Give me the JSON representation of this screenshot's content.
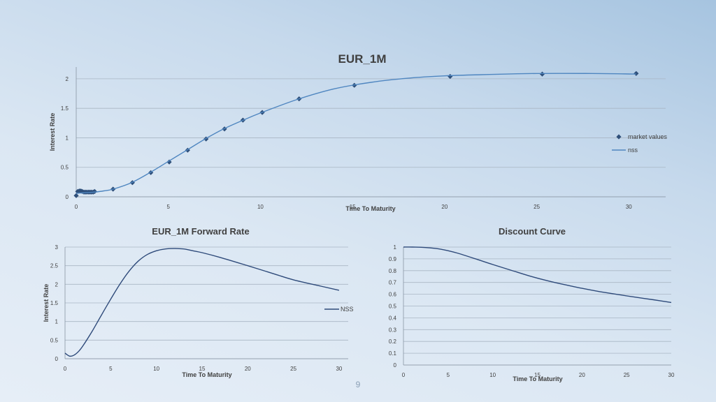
{
  "page_number": "9",
  "chart_data": [
    {
      "type": "scatter",
      "title": "EUR_1M",
      "xlabel": "Time To Maturity",
      "ylabel": "Interest Rate",
      "xlim": [
        0,
        32
      ],
      "ylim": [
        0,
        2.2
      ],
      "xticks": [
        0,
        5,
        10,
        15,
        20,
        25,
        30
      ],
      "yticks": [
        0,
        0.5,
        1,
        1.5,
        2
      ],
      "grid": true,
      "legend": "right",
      "series": [
        {
          "name": "market values",
          "marker": "diamond",
          "color": "#2e4f7a",
          "x": [
            0.0,
            0.08,
            0.17,
            0.25,
            0.33,
            0.42,
            0.5,
            0.58,
            0.67,
            0.75,
            0.83,
            0.92,
            1.0,
            2.0,
            3.05,
            4.05,
            5.05,
            6.05,
            7.05,
            8.05,
            9.05,
            10.1,
            12.1,
            15.1,
            20.3,
            25.3,
            30.4
          ],
          "y": [
            0.02,
            0.09,
            0.1,
            0.1,
            0.09,
            0.08,
            0.08,
            0.08,
            0.08,
            0.08,
            0.08,
            0.08,
            0.09,
            0.13,
            0.24,
            0.41,
            0.59,
            0.79,
            0.98,
            1.15,
            1.3,
            1.43,
            1.66,
            1.89,
            2.04,
            2.08,
            2.09
          ]
        },
        {
          "name": "nss",
          "type": "line",
          "color": "#4f86c0",
          "x": [
            0,
            0.5,
            1,
            1.5,
            2,
            3,
            4,
            5,
            6,
            7,
            8,
            9,
            10,
            12,
            14,
            16,
            18,
            20,
            22,
            25,
            28,
            30.4
          ],
          "y": [
            0.06,
            0.07,
            0.08,
            0.1,
            0.13,
            0.24,
            0.41,
            0.6,
            0.79,
            0.98,
            1.15,
            1.29,
            1.42,
            1.65,
            1.83,
            1.94,
            2.01,
            2.05,
            2.07,
            2.09,
            2.09,
            2.08
          ]
        }
      ]
    },
    {
      "type": "line",
      "title": "EUR_1M Forward Rate",
      "xlabel": "Time To Maturity",
      "ylabel": "Interest Rate",
      "xlim": [
        0,
        31
      ],
      "ylim": [
        0,
        3
      ],
      "xticks": [
        0,
        5,
        10,
        15,
        20,
        25,
        30
      ],
      "yticks": [
        0,
        0.5,
        1,
        1.5,
        2,
        2.5,
        3
      ],
      "grid": true,
      "legend": "right",
      "series": [
        {
          "name": "NSS",
          "color": "#2e4a7a",
          "x": [
            0,
            0.5,
            1,
            1.5,
            2,
            3,
            4,
            5,
            6,
            7,
            8,
            9,
            10,
            11,
            12,
            13,
            14,
            15,
            17,
            20,
            23,
            25,
            28,
            30
          ],
          "y": [
            0.15,
            0.07,
            0.1,
            0.2,
            0.36,
            0.75,
            1.18,
            1.6,
            2.0,
            2.35,
            2.62,
            2.8,
            2.9,
            2.95,
            2.96,
            2.95,
            2.9,
            2.85,
            2.72,
            2.5,
            2.27,
            2.12,
            1.95,
            1.84
          ]
        }
      ]
    },
    {
      "type": "line",
      "title": "Discount Curve",
      "xlabel": "Time To Maturity",
      "ylabel": "",
      "xlim": [
        0,
        30
      ],
      "ylim": [
        0,
        1
      ],
      "xticks": [
        0,
        5,
        10,
        15,
        20,
        25,
        30
      ],
      "yticks": [
        0,
        0.1,
        0.2,
        0.3,
        0.4,
        0.5,
        0.6,
        0.7,
        0.8,
        0.9,
        1
      ],
      "grid": true,
      "series": [
        {
          "color": "#2e4a7a",
          "x": [
            0,
            1,
            2,
            3,
            4,
            5,
            6,
            8,
            10,
            12,
            14,
            16,
            18,
            20,
            22,
            24,
            26,
            28,
            30
          ],
          "y": [
            1.0,
            1.0,
            0.998,
            0.993,
            0.984,
            0.969,
            0.95,
            0.902,
            0.852,
            0.805,
            0.758,
            0.717,
            0.682,
            0.65,
            0.622,
            0.598,
            0.575,
            0.553,
            0.53
          ]
        }
      ]
    }
  ]
}
